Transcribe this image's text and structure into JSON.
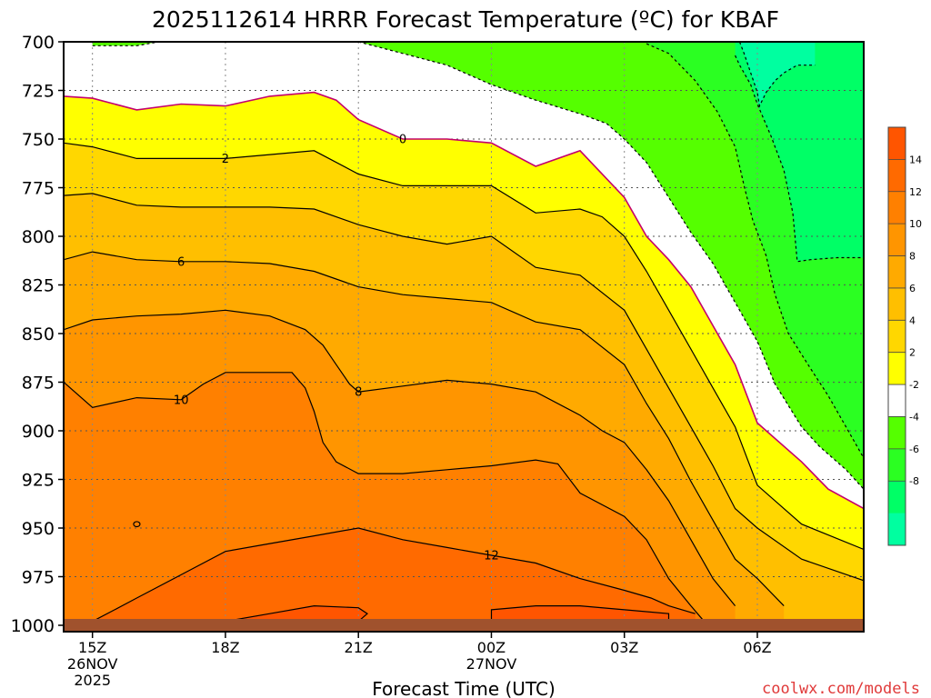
{
  "chart_data": {
    "type": "heatmap",
    "title": "2025112614 HRRR Forecast Temperature (ºC) for KBAF",
    "xlabel": "Forecast Time (UTC)",
    "ylabel": "",
    "credit": "coolwx.com/models",
    "y_ticks": [
      "700",
      "725",
      "750",
      "775",
      "800",
      "825",
      "850",
      "875",
      "900",
      "925",
      "950",
      "975",
      "1000"
    ],
    "ylim": [
      700,
      1000
    ],
    "xlim": [
      14.35,
      32.4
    ],
    "x_ticks": [
      {
        "x": 15,
        "lines": [
          "15Z",
          "26NOV",
          "2025"
        ]
      },
      {
        "x": 18,
        "lines": [
          "18Z"
        ]
      },
      {
        "x": 21,
        "lines": [
          "21Z"
        ]
      },
      {
        "x": 24,
        "lines": [
          "00Z",
          "27NOV"
        ]
      },
      {
        "x": 27,
        "lines": [
          "03Z"
        ]
      },
      {
        "x": 30,
        "lines": [
          "06Z"
        ]
      }
    ],
    "grid": true,
    "colorbar": {
      "ticks": [
        "14",
        "12",
        "10",
        "8",
        "6",
        "4",
        "2",
        "-2",
        "-4",
        "-6",
        "-8"
      ],
      "bands": [
        {
          "label": "14+",
          "color": "#ff5500"
        },
        {
          "label": "12-14",
          "color": "#ff6a00"
        },
        {
          "label": "10-12",
          "color": "#ff8000"
        },
        {
          "label": "8-10",
          "color": "#ff9500"
        },
        {
          "label": "6-8",
          "color": "#ffaa00"
        },
        {
          "label": "4-6",
          "color": "#ffbf00"
        },
        {
          "label": "2-4",
          "color": "#ffd700"
        },
        {
          "label": "0-2",
          "color": "#ffff00"
        },
        {
          "label": "-2-0",
          "color": "#ffffff"
        },
        {
          "label": "-4--2",
          "color": "#55ff00"
        },
        {
          "label": "-6--4",
          "color": "#2bff22"
        },
        {
          "label": "-8--6",
          "color": "#00ff66"
        },
        {
          "label": "<-8",
          "color": "#00ffa0"
        }
      ]
    },
    "contours": [
      {
        "level": -8,
        "dashed": true,
        "color": "#000000",
        "points": [
          [
            29.6,
            700
          ],
          [
            29.7,
            706
          ],
          [
            29.85,
            716
          ],
          [
            30.0,
            726
          ],
          [
            30.05,
            733
          ],
          [
            30.2,
            726
          ],
          [
            30.4,
            720
          ],
          [
            30.6,
            716
          ],
          [
            30.9,
            712
          ],
          [
            31.3,
            712
          ]
        ]
      },
      {
        "level": -6,
        "dashed": true,
        "color": "#000000",
        "points": [
          [
            29.5,
            707
          ],
          [
            29.6,
            712
          ],
          [
            29.85,
            722
          ],
          [
            30.0,
            732
          ],
          [
            30.3,
            748
          ],
          [
            30.6,
            766
          ],
          [
            30.8,
            788
          ],
          [
            30.9,
            813
          ],
          [
            31.2,
            812
          ],
          [
            31.8,
            811
          ],
          [
            32.4,
            811
          ]
        ]
      },
      {
        "level": -4,
        "dashed": true,
        "color": "#000000",
        "points": [
          [
            27.5,
            701
          ],
          [
            28.0,
            706
          ],
          [
            28.6,
            720
          ],
          [
            29.1,
            736
          ],
          [
            29.5,
            754
          ],
          [
            29.7,
            774
          ],
          [
            29.9,
            792
          ],
          [
            30.2,
            810
          ],
          [
            30.4,
            830
          ],
          [
            30.7,
            850
          ],
          [
            31.2,
            868
          ],
          [
            31.6,
            882
          ],
          [
            32.0,
            898
          ],
          [
            32.4,
            914
          ]
        ]
      },
      {
        "level": -2,
        "dashed": true,
        "color": "#000000",
        "points": [
          [
            21.0,
            700
          ],
          [
            22.0,
            706
          ],
          [
            23.0,
            712
          ],
          [
            24.0,
            722
          ],
          [
            25.0,
            730
          ],
          [
            26.0,
            737
          ],
          [
            26.6,
            742
          ],
          [
            27.0,
            750
          ],
          [
            27.5,
            762
          ],
          [
            28.0,
            780
          ],
          [
            28.5,
            798
          ],
          [
            29.0,
            814
          ],
          [
            29.5,
            834
          ],
          [
            30.0,
            854
          ],
          [
            30.4,
            876
          ],
          [
            31.0,
            898
          ],
          [
            31.4,
            908
          ],
          [
            32.0,
            920
          ],
          [
            32.4,
            930
          ]
        ]
      },
      {
        "level": -2,
        "dashed": true,
        "color": "#000000",
        "points": [
          [
            15.0,
            702
          ],
          [
            16.0,
            702
          ],
          [
            17.0,
            698
          ],
          [
            18.0,
            700
          ]
        ]
      },
      {
        "level": 0,
        "dashed": false,
        "color": "#c4006d",
        "label_x": 22.0,
        "points": [
          [
            14.35,
            728
          ],
          [
            15.0,
            729
          ],
          [
            15.5,
            732
          ],
          [
            16.0,
            735
          ],
          [
            17.0,
            732
          ],
          [
            18.0,
            733
          ],
          [
            19.0,
            728
          ],
          [
            20.0,
            726
          ],
          [
            20.5,
            730
          ],
          [
            21.0,
            740
          ],
          [
            22.0,
            750
          ],
          [
            23.0,
            750
          ],
          [
            24.0,
            752
          ],
          [
            25.0,
            764
          ],
          [
            26.0,
            756
          ],
          [
            27.0,
            780
          ],
          [
            27.5,
            800
          ],
          [
            28.0,
            812
          ],
          [
            28.5,
            826
          ],
          [
            29.0,
            846
          ],
          [
            29.5,
            866
          ],
          [
            30.0,
            896
          ],
          [
            31.0,
            916
          ],
          [
            31.6,
            930
          ],
          [
            32.4,
            940
          ]
        ]
      },
      {
        "level": 2,
        "dashed": false,
        "color": "#000000",
        "label_x": 18.0,
        "points": [
          [
            14.35,
            752
          ],
          [
            15.0,
            754
          ],
          [
            16.0,
            760
          ],
          [
            17.0,
            760
          ],
          [
            18.0,
            760
          ],
          [
            19.0,
            758
          ],
          [
            20.0,
            756
          ],
          [
            21.0,
            768
          ],
          [
            22.0,
            774
          ],
          [
            23.0,
            774
          ],
          [
            24.0,
            774
          ],
          [
            25.0,
            788
          ],
          [
            26.0,
            786
          ],
          [
            26.5,
            790
          ],
          [
            27.0,
            800
          ],
          [
            27.5,
            818
          ],
          [
            28.0,
            838
          ],
          [
            28.5,
            858
          ],
          [
            29.0,
            878
          ],
          [
            29.5,
            898
          ],
          [
            30.0,
            928
          ],
          [
            31.0,
            948
          ],
          [
            32.4,
            961
          ]
        ]
      },
      {
        "level": 4,
        "dashed": false,
        "color": "#000000",
        "points": [
          [
            14.35,
            779
          ],
          [
            15.0,
            778
          ],
          [
            16.0,
            784
          ],
          [
            17.0,
            785
          ],
          [
            18.0,
            785
          ],
          [
            19.0,
            785
          ],
          [
            20.0,
            786
          ],
          [
            21.0,
            794
          ],
          [
            22.0,
            800
          ],
          [
            23.0,
            804
          ],
          [
            24.0,
            800
          ],
          [
            25.0,
            816
          ],
          [
            26.0,
            820
          ],
          [
            27.0,
            838
          ],
          [
            27.5,
            858
          ],
          [
            28.0,
            878
          ],
          [
            28.5,
            898
          ],
          [
            29.0,
            918
          ],
          [
            29.5,
            940
          ],
          [
            30.0,
            950
          ],
          [
            31.0,
            966
          ],
          [
            32.4,
            977
          ]
        ]
      },
      {
        "level": 6,
        "dashed": false,
        "color": "#000000",
        "label_x": 17.0,
        "points": [
          [
            14.35,
            812
          ],
          [
            15.0,
            808
          ],
          [
            16.0,
            812
          ],
          [
            17.0,
            813
          ],
          [
            18.0,
            813
          ],
          [
            19.0,
            814
          ],
          [
            20.0,
            818
          ],
          [
            21.0,
            826
          ],
          [
            22.0,
            830
          ],
          [
            23.0,
            832
          ],
          [
            24.0,
            834
          ],
          [
            25.0,
            844
          ],
          [
            26.0,
            848
          ],
          [
            27.0,
            866
          ],
          [
            27.5,
            886
          ],
          [
            28.0,
            904
          ],
          [
            28.5,
            926
          ],
          [
            29.0,
            946
          ],
          [
            29.5,
            966
          ],
          [
            30.0,
            976
          ],
          [
            30.6,
            990
          ]
        ]
      },
      {
        "level": 8,
        "dashed": false,
        "color": "#000000",
        "label_x": 21.0,
        "points": [
          [
            14.35,
            848
          ],
          [
            15.0,
            843
          ],
          [
            16.0,
            841
          ],
          [
            17.0,
            840
          ],
          [
            18.0,
            838
          ],
          [
            19.0,
            841
          ],
          [
            19.8,
            848
          ],
          [
            20.2,
            856
          ],
          [
            20.5,
            866
          ],
          [
            20.8,
            876
          ],
          [
            21.0,
            880
          ],
          [
            22.0,
            877
          ],
          [
            23.0,
            874
          ],
          [
            24.0,
            876
          ],
          [
            25.0,
            880
          ],
          [
            26.0,
            892
          ],
          [
            26.5,
            900
          ],
          [
            27.0,
            906
          ],
          [
            27.5,
            920
          ],
          [
            28.0,
            936
          ],
          [
            28.5,
            956
          ],
          [
            29.0,
            976
          ],
          [
            29.5,
            990
          ]
        ]
      },
      {
        "level": 10,
        "dashed": false,
        "color": "#000000",
        "label_x": 17.0,
        "points": [
          [
            14.35,
            875
          ],
          [
            15.0,
            888
          ],
          [
            16.0,
            883
          ],
          [
            17.0,
            884
          ],
          [
            17.5,
            876
          ],
          [
            18.0,
            870
          ],
          [
            19.0,
            870
          ],
          [
            19.5,
            870
          ],
          [
            19.8,
            878
          ],
          [
            20.0,
            890
          ],
          [
            20.2,
            906
          ],
          [
            20.5,
            916
          ],
          [
            21.0,
            922
          ],
          [
            22.0,
            922
          ],
          [
            23.0,
            920
          ],
          [
            24.0,
            918
          ],
          [
            25.0,
            915
          ],
          [
            25.5,
            917
          ],
          [
            26.0,
            932
          ],
          [
            27.0,
            944
          ],
          [
            27.5,
            956
          ],
          [
            28.0,
            976
          ],
          [
            28.5,
            990
          ],
          [
            28.8,
            998
          ]
        ]
      },
      {
        "level": 12,
        "dashed": false,
        "color": "#000000",
        "label_x": 24.0,
        "points": [
          [
            15.0,
            998
          ],
          [
            15.5,
            992
          ],
          [
            16.0,
            986
          ],
          [
            17.0,
            974
          ],
          [
            18.0,
            962
          ],
          [
            19.0,
            958
          ],
          [
            20.0,
            954
          ],
          [
            21.0,
            950
          ],
          [
            22.0,
            956
          ],
          [
            23.0,
            960
          ],
          [
            24.0,
            964
          ],
          [
            25.0,
            968
          ],
          [
            26.0,
            976
          ],
          [
            27.0,
            982
          ],
          [
            27.6,
            986
          ],
          [
            28.0,
            990
          ],
          [
            28.6,
            994
          ]
        ]
      },
      {
        "level": 14,
        "dashed": false,
        "color": "#000000",
        "points": [
          [
            18.0,
            998
          ],
          [
            19.0,
            994
          ],
          [
            20.0,
            990
          ],
          [
            21.0,
            991
          ],
          [
            21.2,
            994
          ],
          [
            21.0,
            998
          ],
          [
            20.0,
            999
          ],
          [
            19.0,
            999
          ]
        ]
      },
      {
        "level": 14,
        "dashed": false,
        "color": "#000000",
        "points": [
          [
            24.0,
            992
          ],
          [
            25.0,
            990
          ],
          [
            26.0,
            990
          ],
          [
            27.0,
            992
          ],
          [
            28.0,
            994
          ],
          [
            28.0,
            998
          ],
          [
            27.0,
            999
          ],
          [
            26.0,
            998
          ],
          [
            25.0,
            999
          ],
          [
            24.0,
            999
          ]
        ]
      }
    ]
  }
}
